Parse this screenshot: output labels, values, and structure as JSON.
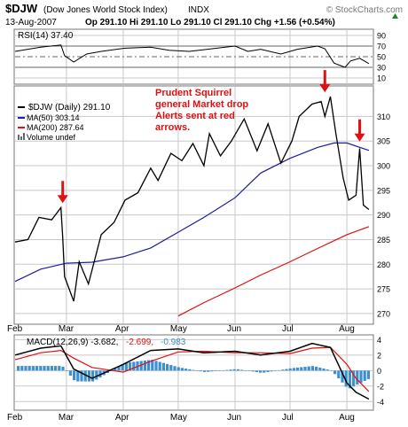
{
  "header": {
    "symbol": "$DJW",
    "name": "(Dow Jones World Stock Index)",
    "exchange": "INDX",
    "date": "13-Aug-2007",
    "quote": "Op 291.10  Hi 291.10  Lo 291.10  Cl 291.10  Chg +1.56 (+0.54%)",
    "quote_change_arrow": "triangle-up-icon",
    "brand": "© StockCharts.com"
  },
  "rsi_panel": {
    "label": "RSI(14) 37.40",
    "ticks": [
      "90",
      "70",
      "50",
      "30",
      "10"
    ]
  },
  "price_panel": {
    "legend": {
      "price": "$DJW (Daily) 291.10",
      "ma50": "MA(50) 303.14",
      "ma200": "MA(200) 287.64",
      "volume": "Volume undef"
    },
    "annotation": [
      "Prudent Squirrel",
      "general Market drop",
      "Alerts sent at red",
      "arrows."
    ],
    "ticks": [
      "310",
      "305",
      "300",
      "295",
      "290",
      "285",
      "280",
      "275",
      "270"
    ]
  },
  "macd_panel": {
    "label_prefix": "MACD(12,26,9) -3.682,",
    "label_signal": "-2.699,",
    "label_hist": "-0.983",
    "ticks": [
      "4",
      "2",
      "0",
      "-2",
      "-4"
    ]
  },
  "x_axis": {
    "months": [
      "Feb",
      "Mar",
      "Apr",
      "May",
      "Jun",
      "Jul",
      "Aug"
    ]
  },
  "colors": {
    "price": "#000000",
    "ma50": "#1c1ca0",
    "ma200": "#e01010",
    "annotation": "#e01010",
    "histogram": "#3e8fcf",
    "grid": "#c8c8c8"
  },
  "chart_data": [
    {
      "type": "line",
      "title": "RSI(14) 37.40",
      "ylim": [
        0,
        100
      ],
      "reference_lines": [
        70,
        50,
        30
      ],
      "series": [
        {
          "name": "RSI(14)",
          "x": [
            "2007-02-01",
            "2007-02-15",
            "2007-02-26",
            "2007-02-28",
            "2007-03-05",
            "2007-03-12",
            "2007-03-20",
            "2007-04-02",
            "2007-04-16",
            "2007-04-26",
            "2007-05-07",
            "2007-05-17",
            "2007-06-01",
            "2007-06-08",
            "2007-06-15",
            "2007-06-26",
            "2007-07-05",
            "2007-07-16",
            "2007-07-20",
            "2007-07-25",
            "2007-07-31",
            "2007-08-03",
            "2007-08-08",
            "2007-08-13"
          ],
          "values": [
            60,
            68,
            72,
            52,
            40,
            55,
            60,
            66,
            68,
            62,
            60,
            64,
            70,
            60,
            64,
            55,
            64,
            70,
            65,
            38,
            30,
            42,
            47,
            37
          ]
        }
      ]
    },
    {
      "type": "line",
      "title": "$DJW (Daily) 291.10",
      "ylim": [
        268,
        316
      ],
      "series": [
        {
          "name": "$DJW (Daily) 291.10",
          "x": [
            "2007-02-01",
            "2007-02-08",
            "2007-02-14",
            "2007-02-21",
            "2007-02-26",
            "2007-02-27",
            "2007-02-28",
            "2007-03-05",
            "2007-03-08",
            "2007-03-13",
            "2007-03-20",
            "2007-03-27",
            "2007-04-02",
            "2007-04-09",
            "2007-04-16",
            "2007-04-20",
            "2007-04-27",
            "2007-05-03",
            "2007-05-09",
            "2007-05-15",
            "2007-05-18",
            "2007-05-24",
            "2007-05-30",
            "2007-06-06",
            "2007-06-13",
            "2007-06-19",
            "2007-06-26",
            "2007-07-02",
            "2007-07-06",
            "2007-07-13",
            "2007-07-18",
            "2007-07-20",
            "2007-07-23",
            "2007-07-26",
            "2007-07-30",
            "2007-08-02",
            "2007-08-06",
            "2007-08-08",
            "2007-08-10",
            "2007-08-13"
          ],
          "values": [
            284.5,
            285.0,
            289.5,
            289.0,
            291.5,
            285.5,
            277.5,
            272.5,
            280.5,
            276.0,
            286.0,
            288.5,
            293.0,
            294.5,
            299.5,
            297.0,
            302.5,
            301.0,
            304.5,
            300.0,
            306.5,
            302.0,
            305.0,
            309.5,
            303.0,
            308.5,
            300.5,
            305.0,
            310.0,
            312.5,
            313.0,
            310.0,
            314.0,
            306.5,
            297.5,
            293.0,
            294.0,
            303.5,
            292.0,
            291.1
          ]
        },
        {
          "name": "MA(50) 303.14",
          "x": [
            "2007-02-01",
            "2007-02-15",
            "2007-03-01",
            "2007-03-15",
            "2007-04-01",
            "2007-04-16",
            "2007-05-01",
            "2007-05-15",
            "2007-06-01",
            "2007-06-15",
            "2007-07-01",
            "2007-07-16",
            "2007-07-25",
            "2007-08-01",
            "2007-08-13"
          ],
          "values": [
            276.5,
            279.0,
            280.2,
            280.4,
            281.5,
            283.3,
            286.5,
            289.5,
            293.5,
            298.5,
            301.5,
            303.7,
            304.6,
            304.6,
            303.1
          ]
        },
        {
          "name": "MA(200) 287.64",
          "x": [
            "2007-05-01",
            "2007-05-15",
            "2007-06-01",
            "2007-06-15",
            "2007-07-01",
            "2007-07-16",
            "2007-08-01",
            "2007-08-13"
          ],
          "values": [
            269.5,
            272.2,
            275.2,
            277.8,
            280.5,
            283.2,
            286.0,
            287.64
          ]
        }
      ]
    },
    {
      "type": "line",
      "title": "MACD(12,26,9) -3.682, -2.699, -0.983",
      "ylim": [
        -5,
        4.5
      ],
      "series": [
        {
          "name": "MACD(12,26,9) -3.682",
          "x": [
            "2007-02-01",
            "2007-02-15",
            "2007-02-26",
            "2007-03-05",
            "2007-03-15",
            "2007-04-01",
            "2007-04-16",
            "2007-05-01",
            "2007-05-15",
            "2007-06-01",
            "2007-06-15",
            "2007-07-01",
            "2007-07-13",
            "2007-07-23",
            "2007-08-01",
            "2007-08-06",
            "2007-08-13"
          ],
          "values": [
            2.0,
            2.9,
            3.2,
            0.2,
            -1.0,
            0.8,
            2.6,
            2.8,
            2.3,
            2.5,
            2.0,
            2.5,
            3.5,
            3.0,
            -1.6,
            -2.8,
            -3.68
          ]
        },
        {
          "name": "-2.699",
          "x": [
            "2007-02-01",
            "2007-02-15",
            "2007-02-26",
            "2007-03-05",
            "2007-03-15",
            "2007-04-01",
            "2007-04-16",
            "2007-05-01",
            "2007-05-15",
            "2007-06-01",
            "2007-06-15",
            "2007-07-01",
            "2007-07-13",
            "2007-07-23",
            "2007-08-01",
            "2007-08-06",
            "2007-08-13"
          ],
          "values": [
            1.4,
            2.3,
            2.6,
            1.6,
            0.4,
            -0.2,
            1.2,
            2.4,
            2.5,
            2.3,
            2.3,
            2.2,
            2.9,
            3.0,
            0.8,
            -1.0,
            -2.7
          ]
        },
        {
          "name": "-0.983",
          "x": [
            "2007-02-01",
            "2007-02-15",
            "2007-02-26",
            "2007-03-05",
            "2007-03-15",
            "2007-04-01",
            "2007-04-16",
            "2007-05-01",
            "2007-05-15",
            "2007-06-01",
            "2007-06-15",
            "2007-07-01",
            "2007-07-13",
            "2007-07-23",
            "2007-08-01",
            "2007-08-06",
            "2007-08-13"
          ],
          "values": [
            0.6,
            0.6,
            0.6,
            -1.4,
            -1.4,
            1.0,
            1.4,
            0.4,
            -0.2,
            0.2,
            -0.3,
            0.3,
            0.6,
            0.0,
            -2.4,
            -1.8,
            -0.98
          ]
        }
      ]
    }
  ]
}
